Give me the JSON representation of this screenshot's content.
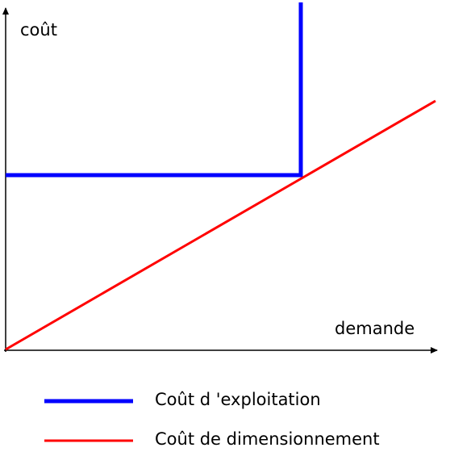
{
  "axes": {
    "y_label": "coût",
    "x_label": "demande"
  },
  "legend": [
    {
      "label": "Coût d 'exploitation",
      "color": "#0000ff"
    },
    {
      "label": "Coût de dimensionnement",
      "color": "#ff0000"
    }
  ]
}
